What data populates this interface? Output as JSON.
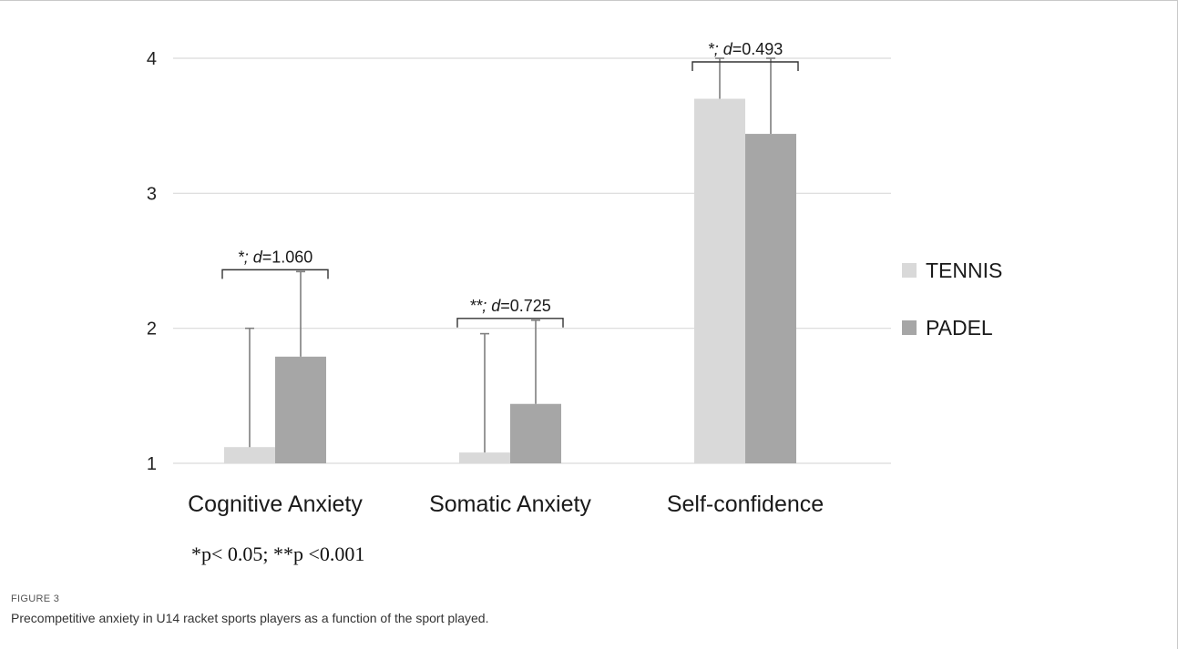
{
  "chart_data": {
    "type": "bar",
    "categories": [
      "Cognitive Anxiety",
      "Somatic Anxiety",
      "Self-confidence"
    ],
    "series": [
      {
        "name": "TENNIS",
        "color": "#d9d9d9",
        "values": [
          1.12,
          1.08,
          3.7
        ],
        "error_upper": [
          2.0,
          1.96,
          4.0
        ]
      },
      {
        "name": "PADEL",
        "color": "#a6a6a6",
        "values": [
          1.79,
          1.44,
          3.44
        ],
        "error_upper": [
          2.42,
          2.06,
          4.0
        ]
      }
    ],
    "ylim": [
      1,
      4
    ],
    "yticks": [
      "1",
      "2",
      "3",
      "4"
    ],
    "grid": true,
    "legend_position": "right",
    "annotations": [
      {
        "category": 0,
        "prefix": "*; ",
        "d_symbol": "d",
        "d_value": "=1.060"
      },
      {
        "category": 1,
        "prefix": "**; ",
        "d_symbol": "d",
        "d_value": "=0.725"
      },
      {
        "category": 2,
        "prefix": "*; ",
        "d_symbol": "d",
        "d_value": "=0.493"
      }
    ],
    "footnote": "*p< 0.05; **p <0.001"
  },
  "figure": {
    "label": "FIGURE 3",
    "caption": "Precompetitive anxiety in U14 racket sports players as a function of the sport played."
  }
}
